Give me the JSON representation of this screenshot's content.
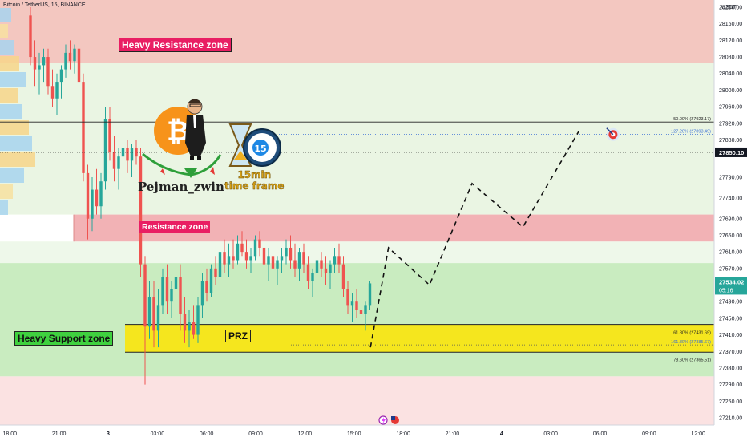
{
  "header": {
    "title": "Bitcoin / TetherUS, 15, BINANCE"
  },
  "annotations": {
    "heavy_resistance": "Heavy Resistance zone",
    "resistance": "Resistance zone",
    "heavy_support": "Heavy Support zone",
    "prz": "PRZ",
    "author": "Pejman_zwin",
    "timeframe_line1": "15min",
    "timeframe_line2": "time frame",
    "clock_number": "15"
  },
  "colors": {
    "heavy_resistance_zone": "#f3c7c0",
    "resistance_zone": "#f2b2b5",
    "heavy_support_zone": "#c9ecc0",
    "prz_zone": "#f5e61e",
    "bull_candle": "#26a69a",
    "bear_candle": "#ef5350"
  },
  "chart_data": {
    "type": "candlestick",
    "currency": "USDT",
    "y_axis": {
      "min": 27190,
      "max": 28220,
      "ticks": [
        28200.0,
        28160.0,
        28120.0,
        28080.0,
        28040.0,
        28000.0,
        27960.0,
        27920.0,
        27880.0,
        27840.0,
        27790.0,
        27740.0,
        27690.0,
        27650.0,
        27610.0,
        27570.0,
        27530.0,
        27490.0,
        27450.0,
        27410.0,
        27370.0,
        27330.0,
        27290.0,
        27250.0,
        27210.0
      ],
      "tick_labels": [
        "28200.00",
        "28160.00",
        "28120.00",
        "28080.00",
        "28040.00",
        "28000.00",
        "27960.00",
        "27920.00",
        "27880.00",
        "",
        "27790.00",
        "27740.00",
        "27690.00",
        "27650.00",
        "27610.00",
        "27570.00",
        "",
        "27490.00",
        "27450.00",
        "27410.00",
        "27370.00",
        "27330.00",
        "27290.00",
        "27250.00",
        "27210.00"
      ]
    },
    "x_axis": {
      "tick_labels": [
        "18:00",
        "21:00",
        "3",
        "03:00",
        "06:00",
        "09:00",
        "12:00",
        "15:00",
        "18:00",
        "21:00",
        "4",
        "03:00",
        "06:00",
        "09:00",
        "12:00"
      ],
      "tick_hours": [
        -6,
        -3,
        0,
        3,
        6,
        9,
        12,
        15,
        18,
        21,
        24,
        27,
        30,
        33,
        36
      ]
    },
    "current_price": {
      "value": 27534.02,
      "label": "27534.02",
      "countdown": "05:16"
    },
    "marked_price": {
      "value": 27850.1,
      "label": "27850.10"
    },
    "zones": [
      {
        "name": "Heavy Resistance zone",
        "from": 28065,
        "to": 28230
      },
      {
        "name": "Resistance zone",
        "from": 27635,
        "to": 27700
      },
      {
        "name": "Heavy Support zone",
        "from": 27310,
        "to": 27583
      },
      {
        "name": "PRZ",
        "from": 27368,
        "to": 27435
      }
    ],
    "fib_levels": [
      {
        "label": "50.00% (27923.17)",
        "value": 27923.17
      },
      {
        "label": "127.20% (27893.49)",
        "value": 27893.49
      },
      {
        "label": "61.80% (27431.69)",
        "value": 27431.69
      },
      {
        "label": "161.80% (27385.67)",
        "value": 27385.67
      },
      {
        "label": "78.60% (27365.51)",
        "value": 27365.51
      }
    ],
    "projected_path": [
      {
        "hour": 16.0,
        "price": 27380
      },
      {
        "hour": 17.1,
        "price": 27620
      },
      {
        "hour": 19.6,
        "price": 27530
      },
      {
        "hour": 22.2,
        "price": 27775
      },
      {
        "hour": 25.3,
        "price": 27670
      },
      {
        "hour": 28.7,
        "price": 27900
      }
    ],
    "target": {
      "hour": 30.8,
      "price": 27893
    },
    "candles": [
      {
        "o": 28180,
        "h": 28200,
        "l": 28060,
        "c": 28080
      },
      {
        "o": 28080,
        "h": 28120,
        "l": 28010,
        "c": 28050
      },
      {
        "o": 28050,
        "h": 28090,
        "l": 27990,
        "c": 28060
      },
      {
        "o": 28060,
        "h": 28100,
        "l": 28020,
        "c": 28080
      },
      {
        "o": 28080,
        "h": 28100,
        "l": 27990,
        "c": 28010
      },
      {
        "o": 28010,
        "h": 28050,
        "l": 27960,
        "c": 27980
      },
      {
        "o": 27980,
        "h": 28040,
        "l": 27940,
        "c": 28020
      },
      {
        "o": 28020,
        "h": 28060,
        "l": 27980,
        "c": 28050
      },
      {
        "o": 28050,
        "h": 28110,
        "l": 28030,
        "c": 28090
      },
      {
        "o": 28090,
        "h": 28120,
        "l": 28050,
        "c": 28070
      },
      {
        "o": 28070,
        "h": 28110,
        "l": 28040,
        "c": 28100
      },
      {
        "o": 28100,
        "h": 28120,
        "l": 28000,
        "c": 28020
      },
      {
        "o": 28020,
        "h": 28040,
        "l": 27780,
        "c": 27800
      },
      {
        "o": 27800,
        "h": 27820,
        "l": 27640,
        "c": 27690
      },
      {
        "o": 27690,
        "h": 27790,
        "l": 27660,
        "c": 27760
      },
      {
        "o": 27760,
        "h": 27810,
        "l": 27700,
        "c": 27720
      },
      {
        "o": 27720,
        "h": 27800,
        "l": 27690,
        "c": 27780
      },
      {
        "o": 27780,
        "h": 27960,
        "l": 27760,
        "c": 27930
      },
      {
        "o": 27930,
        "h": 27960,
        "l": 27830,
        "c": 27850
      },
      {
        "o": 27850,
        "h": 27890,
        "l": 27780,
        "c": 27810
      },
      {
        "o": 27810,
        "h": 27860,
        "l": 27760,
        "c": 27840
      },
      {
        "o": 27840,
        "h": 27880,
        "l": 27810,
        "c": 27860
      },
      {
        "o": 27860,
        "h": 27880,
        "l": 27800,
        "c": 27830
      },
      {
        "o": 27830,
        "h": 27870,
        "l": 27790,
        "c": 27860
      },
      {
        "o": 27860,
        "h": 27880,
        "l": 27820,
        "c": 27840
      },
      {
        "o": 27840,
        "h": 27860,
        "l": 27550,
        "c": 27580
      },
      {
        "o": 27580,
        "h": 27600,
        "l": 27290,
        "c": 27430
      },
      {
        "o": 27430,
        "h": 27540,
        "l": 27400,
        "c": 27500
      },
      {
        "o": 27500,
        "h": 27540,
        "l": 27380,
        "c": 27420
      },
      {
        "o": 27420,
        "h": 27520,
        "l": 27380,
        "c": 27480
      },
      {
        "o": 27480,
        "h": 27570,
        "l": 27460,
        "c": 27550
      },
      {
        "o": 27550,
        "h": 27580,
        "l": 27460,
        "c": 27490
      },
      {
        "o": 27490,
        "h": 27540,
        "l": 27450,
        "c": 27520
      },
      {
        "o": 27520,
        "h": 27570,
        "l": 27480,
        "c": 27550
      },
      {
        "o": 27550,
        "h": 27580,
        "l": 27420,
        "c": 27460
      },
      {
        "o": 27460,
        "h": 27500,
        "l": 27390,
        "c": 27420
      },
      {
        "o": 27420,
        "h": 27470,
        "l": 27380,
        "c": 27440
      },
      {
        "o": 27440,
        "h": 27480,
        "l": 27400,
        "c": 27410
      },
      {
        "o": 27410,
        "h": 27500,
        "l": 27390,
        "c": 27480
      },
      {
        "o": 27480,
        "h": 27560,
        "l": 27450,
        "c": 27540
      },
      {
        "o": 27540,
        "h": 27570,
        "l": 27490,
        "c": 27510
      },
      {
        "o": 27510,
        "h": 27580,
        "l": 27500,
        "c": 27570
      },
      {
        "o": 27570,
        "h": 27600,
        "l": 27530,
        "c": 27550
      },
      {
        "o": 27550,
        "h": 27620,
        "l": 27530,
        "c": 27610
      },
      {
        "o": 27610,
        "h": 27640,
        "l": 27560,
        "c": 27580
      },
      {
        "o": 27580,
        "h": 27630,
        "l": 27550,
        "c": 27600
      },
      {
        "o": 27600,
        "h": 27640,
        "l": 27570,
        "c": 27590
      },
      {
        "o": 27590,
        "h": 27650,
        "l": 27580,
        "c": 27630
      },
      {
        "o": 27630,
        "h": 27660,
        "l": 27600,
        "c": 27610
      },
      {
        "o": 27610,
        "h": 27640,
        "l": 27570,
        "c": 27590
      },
      {
        "o": 27590,
        "h": 27620,
        "l": 27560,
        "c": 27600
      },
      {
        "o": 27600,
        "h": 27650,
        "l": 27590,
        "c": 27640
      },
      {
        "o": 27640,
        "h": 27660,
        "l": 27600,
        "c": 27620
      },
      {
        "o": 27620,
        "h": 27640,
        "l": 27560,
        "c": 27580
      },
      {
        "o": 27580,
        "h": 27620,
        "l": 27540,
        "c": 27600
      },
      {
        "o": 27600,
        "h": 27630,
        "l": 27560,
        "c": 27570
      },
      {
        "o": 27570,
        "h": 27600,
        "l": 27530,
        "c": 27590
      },
      {
        "o": 27590,
        "h": 27620,
        "l": 27560,
        "c": 27600
      },
      {
        "o": 27600,
        "h": 27640,
        "l": 27580,
        "c": 27620
      },
      {
        "o": 27620,
        "h": 27650,
        "l": 27570,
        "c": 27590
      },
      {
        "o": 27590,
        "h": 27630,
        "l": 27550,
        "c": 27570
      },
      {
        "o": 27570,
        "h": 27620,
        "l": 27540,
        "c": 27610
      },
      {
        "o": 27610,
        "h": 27630,
        "l": 27560,
        "c": 27580
      },
      {
        "o": 27580,
        "h": 27600,
        "l": 27520,
        "c": 27540
      },
      {
        "o": 27540,
        "h": 27570,
        "l": 27500,
        "c": 27560
      },
      {
        "o": 27560,
        "h": 27600,
        "l": 27530,
        "c": 27590
      },
      {
        "o": 27590,
        "h": 27610,
        "l": 27550,
        "c": 27570
      },
      {
        "o": 27570,
        "h": 27600,
        "l": 27530,
        "c": 27560
      },
      {
        "o": 27560,
        "h": 27590,
        "l": 27520,
        "c": 27580
      },
      {
        "o": 27580,
        "h": 27620,
        "l": 27560,
        "c": 27600
      },
      {
        "o": 27600,
        "h": 27630,
        "l": 27560,
        "c": 27580
      },
      {
        "o": 27580,
        "h": 27600,
        "l": 27500,
        "c": 27520
      },
      {
        "o": 27520,
        "h": 27540,
        "l": 27460,
        "c": 27480
      },
      {
        "o": 27480,
        "h": 27510,
        "l": 27440,
        "c": 27490
      },
      {
        "o": 27490,
        "h": 27520,
        "l": 27450,
        "c": 27470
      },
      {
        "o": 27470,
        "h": 27500,
        "l": 27440,
        "c": 27460
      },
      {
        "o": 27460,
        "h": 27490,
        "l": 27420,
        "c": 27480
      },
      {
        "o": 27480,
        "h": 27540,
        "l": 27470,
        "c": 27534
      }
    ]
  }
}
